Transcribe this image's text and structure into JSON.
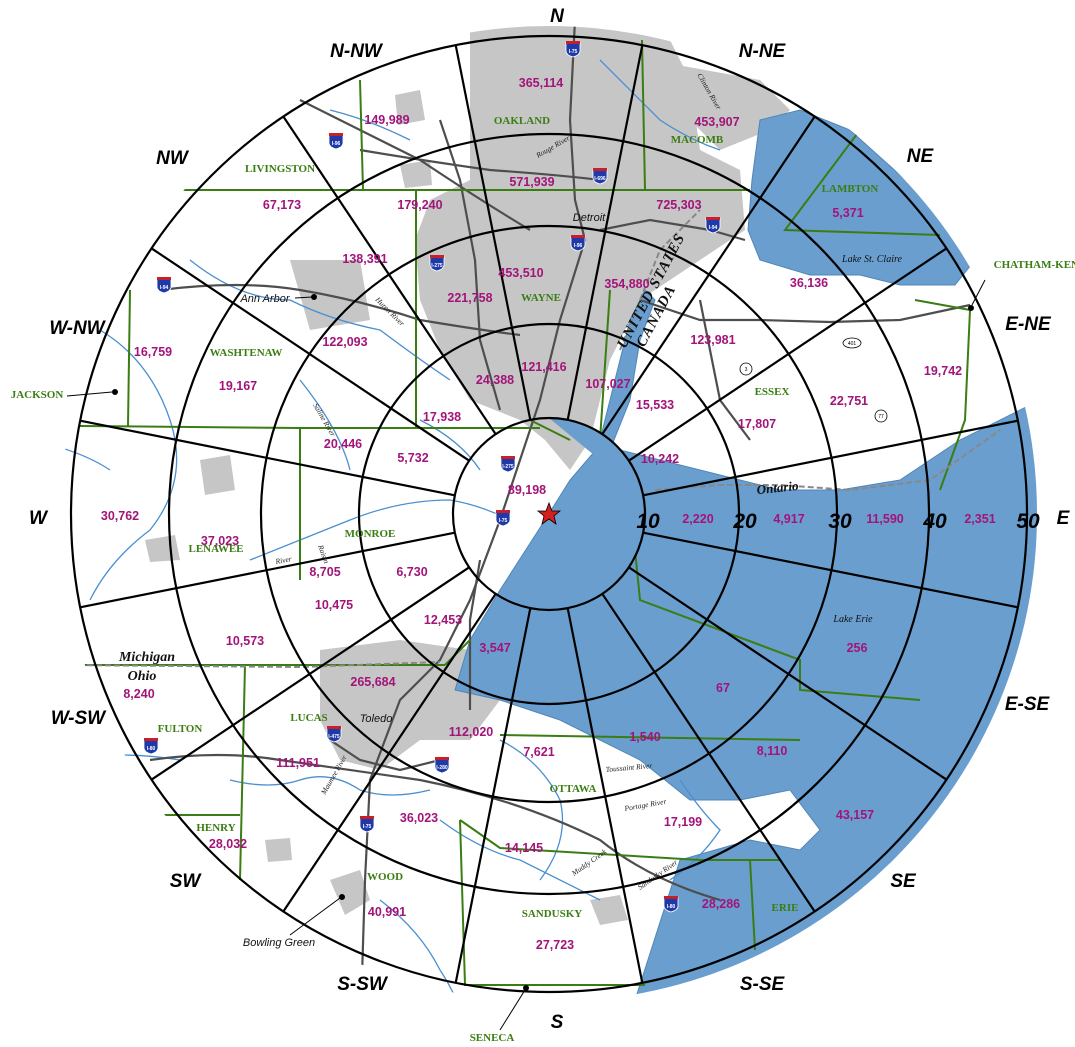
{
  "directions": [
    "N",
    "N-NE",
    "NE",
    "E-NE",
    "E",
    "E-SE",
    "SE",
    "S-SE",
    "S",
    "S-SW",
    "SW",
    "W-SW",
    "W",
    "W-NW",
    "NW",
    "N-NW"
  ],
  "ring_labels": [
    "10",
    "20",
    "30",
    "40",
    "50"
  ],
  "sector_values": {
    "N": [
      "89,198",
      "121,416",
      "453,510",
      "571,939",
      "365,114"
    ],
    "N-NE": [
      "",
      "107,027",
      "354,880",
      "725,303",
      "453,907"
    ],
    "NE": [
      "10,242",
      "15,533",
      "123,981",
      "36,136",
      "5,371"
    ],
    "E-NE": [
      "",
      "",
      "17,807",
      "22,751",
      "19,742"
    ],
    "E": [
      "",
      "2,220",
      "4,917",
      "11,590",
      "2,351"
    ],
    "E-SE": [
      "",
      "",
      "",
      "67",
      "256"
    ],
    "SE": [
      "",
      "",
      "",
      "8,110",
      "43,157"
    ],
    "S-SE": [
      "",
      "",
      "1,540",
      "17,199",
      "28,286"
    ],
    "S": [
      "",
      "3,547",
      "7,621",
      "14,145",
      "27,723"
    ],
    "S-SW": [
      "",
      "112,020",
      "36,023",
      "40,991",
      ""
    ],
    "SW": [
      "12,453",
      "265,684",
      "111,951",
      "28,032",
      ""
    ],
    "W-SW": [
      "",
      "10,475",
      "10,573",
      "8,240",
      ""
    ],
    "W": [
      "6,730",
      "8,705",
      "37,023",
      "30,762",
      ""
    ],
    "W-NW": [
      "5,732",
      "20,446",
      "19,167",
      "16,759",
      ""
    ],
    "NW": [
      "17,938",
      "122,093",
      "138,391",
      "67,173",
      ""
    ],
    "N-NW": [
      "24,388",
      "221,758",
      "179,240",
      "149,989",
      ""
    ]
  },
  "population_labels": [
    "89,198",
    "121,416",
    "453,510",
    "571,939",
    "365,114",
    "107,027",
    "354,880",
    "725,303",
    "453,907",
    "10,242",
    "15,533",
    "123,981",
    "36,136",
    "5,371",
    "17,807",
    "22,751",
    "19,742",
    "2,220",
    "4,917",
    "11,590",
    "2,351",
    "67",
    "256",
    "8,110",
    "43,157",
    "1,540",
    "17,199",
    "28,286",
    "3,547",
    "7,621",
    "14,145",
    "27,723",
    "112,020",
    "36,023",
    "40,991",
    "12,453",
    "265,684",
    "111,951",
    "28,032",
    "10,475",
    "10,573",
    "8,240",
    "6,730",
    "8,705",
    "37,023",
    "30,762",
    "5,732",
    "20,446",
    "19,167",
    "16,759",
    "17,938",
    "122,093",
    "138,391",
    "67,173",
    "24,388",
    "221,758",
    "179,240",
    "149,989"
  ],
  "counties": [
    "OAKLAND",
    "MACOMB",
    "LIVINGSTON",
    "WAYNE",
    "WASHTENAW",
    "LAMBTON",
    "CHATHAM-KENT",
    "ESSEX",
    "JACKSON",
    "LENAWEE",
    "MONROE",
    "FULTON",
    "LUCAS",
    "HENRY",
    "WOOD",
    "OTTAWA",
    "SANDUSKY",
    "ERIE",
    "SENECA"
  ],
  "cities": [
    "Detroit",
    "Ann Arbor",
    "Toledo",
    "Bowling Green"
  ],
  "water": [
    "Lake St. Claire",
    "Lake Erie"
  ],
  "rivers": [
    "Clinton River",
    "Rouge River",
    "Huron River",
    "Saline River",
    "River",
    "Raisin",
    "Maumee River",
    "Toussaint River",
    "Portage River",
    "Muddy Creek",
    "Sandusky River"
  ],
  "boundary_labels": {
    "states": [
      "Michigan",
      "Ohio"
    ],
    "countries": [
      "UNITED STATES",
      "CANADA"
    ],
    "province": "Ontario"
  },
  "highways": [
    "I-75",
    "I-96",
    "I-696",
    "I-94",
    "I-96",
    "I-275",
    "I-94",
    "I-275",
    "I-75",
    "I-475",
    "I-280",
    "I-80",
    "I-75",
    "I-80"
  ],
  "routes": [
    "401",
    "3",
    "77"
  ],
  "colors": {
    "water": "#6a9ece",
    "urban": "#c6c6c6",
    "county_line": "#3a7d12",
    "population": "#a3147a",
    "river": "#4a8fd0",
    "road": "#4e4e4e",
    "ring": "#000000",
    "center_marker": "#d21f1f"
  },
  "center_marker": "star-icon"
}
